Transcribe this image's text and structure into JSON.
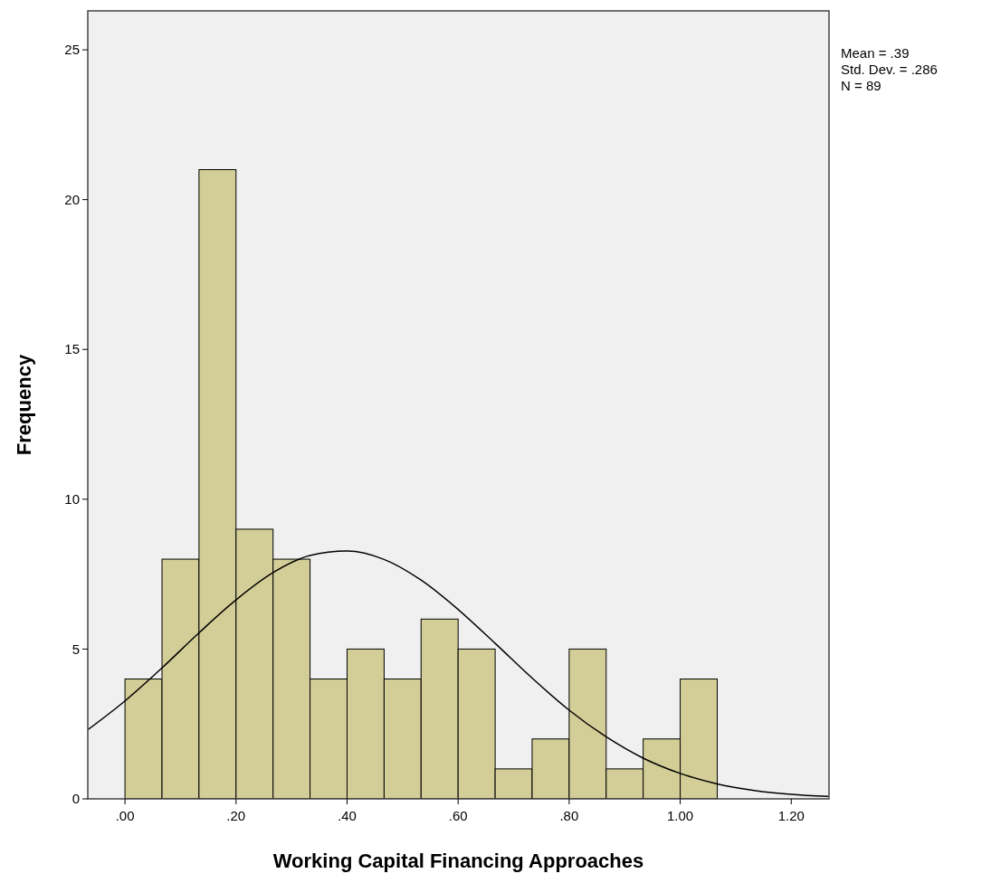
{
  "chart_data": {
    "type": "histogram",
    "xlabel": "Working Capital Financing Approaches",
    "ylabel": "Frequency",
    "bins": [
      0,
      0.0667,
      0.1333,
      0.2,
      0.2667,
      0.3333,
      0.4,
      0.4667,
      0.5333,
      0.6,
      0.6667,
      0.7333,
      0.8,
      0.8667,
      0.9333,
      1.0,
      1.0667
    ],
    "values": [
      4,
      8,
      21,
      9,
      8,
      4,
      5,
      4,
      6,
      5,
      1,
      2,
      5,
      1,
      2,
      4
    ],
    "color": "#d3ce97",
    "series": [
      {
        "type": "line",
        "color": "#000000",
        "x": [
          -0.0667,
          0,
          0.0667,
          0.1333,
          0.2,
          0.2667,
          0.3333,
          0.4,
          0.4667,
          0.5333,
          0.6,
          0.6667,
          0.7333,
          0.8,
          0.8667,
          0.9333,
          1.0,
          1.0667,
          1.1333,
          1.2,
          1.2667
        ],
        "values": [
          2.31,
          3.27,
          4.37,
          5.54,
          6.64,
          7.55,
          8.12,
          8.27,
          7.99,
          7.3,
          6.32,
          5.19,
          4.03,
          2.96,
          2.07,
          1.36,
          0.85,
          0.5,
          0.28,
          0.15,
          0.08
        ]
      }
    ],
    "xlim": [
      -0.067,
      1.268
    ],
    "ylim": [
      0,
      26.3
    ],
    "xticks": [
      {
        "value": 0,
        "label": ".00"
      },
      {
        "value": 0.2,
        "label": ".20"
      },
      {
        "value": 0.4,
        "label": ".40"
      },
      {
        "value": 0.6,
        "label": ".60"
      },
      {
        "value": 0.8,
        "label": ".80"
      },
      {
        "value": 1.0,
        "label": "1.00"
      },
      {
        "value": 1.2,
        "label": "1.20"
      }
    ],
    "yticks": [
      0,
      5,
      10,
      15,
      20,
      25
    ],
    "grid": false,
    "marker": "none",
    "line_style": "solid",
    "annotations": [
      "Mean = .39",
      "Std. Dev. = .286",
      "N = 89"
    ]
  }
}
